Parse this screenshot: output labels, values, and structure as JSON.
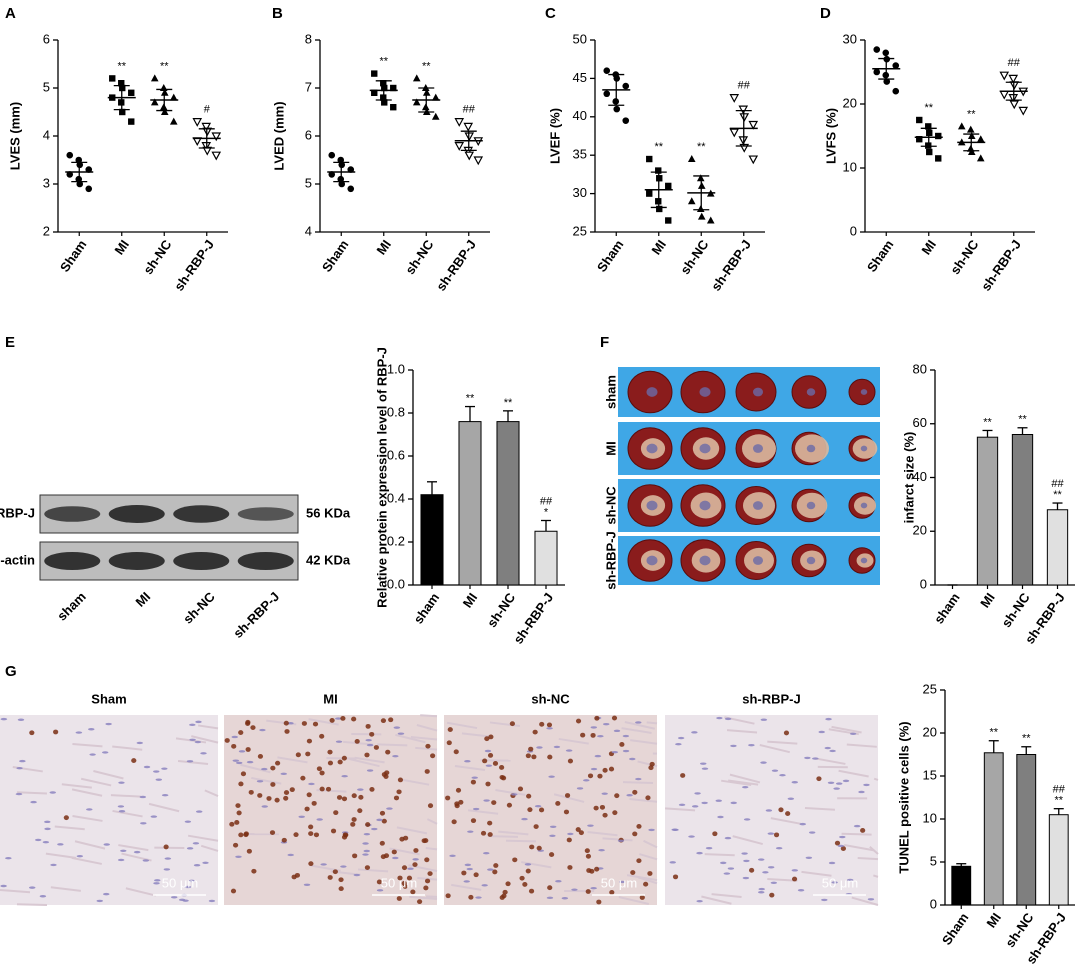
{
  "chart_data": [
    {
      "type": "dot",
      "panel": "A",
      "ylabel": "LVES (mm)",
      "categories": [
        "Sham",
        "MI",
        "sh-NC",
        "sh-RBP-J"
      ],
      "markers": [
        "circle",
        "square",
        "triangle",
        "triangle-down"
      ],
      "points": [
        [
          3.6,
          3.5,
          3.4,
          3.3,
          3.2,
          3.1,
          3.0,
          2.9
        ],
        [
          5.2,
          5.1,
          5.0,
          4.9,
          4.8,
          4.7,
          4.5,
          4.3
        ],
        [
          5.2,
          5.0,
          4.9,
          4.8,
          4.7,
          4.6,
          4.5,
          4.3
        ],
        [
          4.3,
          4.2,
          4.1,
          4.0,
          3.9,
          3.8,
          3.7,
          3.6
        ]
      ],
      "means": [
        3.25,
        4.8,
        4.75,
        3.95
      ],
      "sd": [
        0.2,
        0.25,
        0.22,
        0.2
      ],
      "annotations": [
        null,
        [
          "**"
        ],
        [
          "**"
        ],
        [
          "#"
        ]
      ],
      "ylim": [
        2,
        6
      ],
      "yticks": [
        2,
        3,
        4,
        5,
        6
      ]
    },
    {
      "type": "dot",
      "panel": "B",
      "ylabel": "LVED (mm)",
      "categories": [
        "Sham",
        "MI",
        "sh-NC",
        "sh-RBP-J"
      ],
      "markers": [
        "circle",
        "square",
        "triangle",
        "triangle-down"
      ],
      "points": [
        [
          5.6,
          5.5,
          5.4,
          5.3,
          5.2,
          5.1,
          5.0,
          4.9
        ],
        [
          7.3,
          7.1,
          7.0,
          7.0,
          6.9,
          6.8,
          6.7,
          6.6
        ],
        [
          7.2,
          7.0,
          6.9,
          6.8,
          6.7,
          6.6,
          6.5,
          6.4
        ],
        [
          6.3,
          6.2,
          6.0,
          5.9,
          5.8,
          5.7,
          5.6,
          5.5
        ]
      ],
      "means": [
        5.25,
        6.95,
        6.75,
        5.9
      ],
      "sd": [
        0.2,
        0.2,
        0.25,
        0.2
      ],
      "annotations": [
        null,
        [
          "**"
        ],
        [
          "**"
        ],
        [
          "##"
        ]
      ],
      "ylim": [
        4,
        8
      ],
      "yticks": [
        4,
        5,
        6,
        7,
        8
      ]
    },
    {
      "type": "dot",
      "panel": "C",
      "ylabel": "LVEF (%)",
      "categories": [
        "Sham",
        "MI",
        "sh-NC",
        "sh-RBP-J"
      ],
      "markers": [
        "circle",
        "square",
        "triangle",
        "triangle-down"
      ],
      "points": [
        [
          46,
          45.5,
          45,
          44,
          43,
          42,
          41,
          39.5
        ],
        [
          34.5,
          33,
          32,
          31,
          30,
          29,
          28,
          26.5
        ],
        [
          34.5,
          32,
          31,
          30,
          29,
          28,
          27,
          26.5
        ],
        [
          42.5,
          41,
          40,
          39,
          38,
          37,
          36,
          34.5
        ]
      ],
      "means": [
        43.5,
        30.5,
        30.1,
        38.5
      ],
      "sd": [
        2,
        2.3,
        2.2,
        2.3
      ],
      "annotations": [
        null,
        [
          "**"
        ],
        [
          "**"
        ],
        [
          "##"
        ]
      ],
      "ylim": [
        25,
        50
      ],
      "yticks": [
        25,
        30,
        35,
        40,
        45,
        50
      ]
    },
    {
      "type": "dot",
      "panel": "D",
      "ylabel": "LVFS (%)",
      "categories": [
        "Sham",
        "MI",
        "sh-NC",
        "sh-RBP-J"
      ],
      "markers": [
        "circle",
        "square",
        "triangle",
        "triangle-down"
      ],
      "points": [
        [
          28.5,
          28,
          27,
          26,
          25,
          24.5,
          23.5,
          22
        ],
        [
          17.5,
          16.5,
          15.5,
          15,
          14.5,
          13.5,
          12.5,
          11.5
        ],
        [
          16.5,
          16,
          15,
          14.5,
          14,
          13,
          12.5,
          11.5
        ],
        [
          24.5,
          24,
          23,
          22,
          21.5,
          21,
          20,
          19
        ]
      ],
      "means": [
        25.5,
        14.8,
        14.0,
        22
      ],
      "sd": [
        1.6,
        1.4,
        1.3,
        1.4
      ],
      "annotations": [
        null,
        [
          "**"
        ],
        [
          "**"
        ],
        [
          "##"
        ]
      ],
      "ylim": [
        0,
        30
      ],
      "yticks": [
        0,
        10,
        20,
        30
      ]
    },
    {
      "type": "bar",
      "panel": "E",
      "ylabel": "Relative protein expression level of RBP-J",
      "categories": [
        "sham",
        "MI",
        "sh-NC",
        "sh-RBP-J"
      ],
      "values": [
        0.42,
        0.76,
        0.76,
        0.25
      ],
      "errors": [
        0.06,
        0.07,
        0.05,
        0.05
      ],
      "colors": [
        "#000000",
        "#a6a6a6",
        "#7f7f7f",
        "#e0e0e0"
      ],
      "annotations": [
        null,
        [
          "**"
        ],
        [
          "**"
        ],
        [
          "##",
          "*"
        ]
      ],
      "ylim": [
        0,
        1.0
      ],
      "yticks": [
        {
          "value": 0,
          "label": "0.0"
        },
        0.2,
        0.4,
        0.6,
        0.8,
        {
          "value": 1.0,
          "label": "1.0"
        }
      ]
    },
    {
      "type": "bar",
      "panel": "F",
      "ylabel": "infarct size (%)",
      "categories": [
        "sham",
        "MI",
        "sh-NC",
        "sh-RBP-J"
      ],
      "values": [
        0,
        55,
        56,
        28
      ],
      "errors": [
        0,
        2.5,
        2.5,
        2.5
      ],
      "colors": [
        "#000000",
        "#a6a6a6",
        "#7f7f7f",
        "#e0e0e0"
      ],
      "annotations": [
        null,
        [
          "**"
        ],
        [
          "**"
        ],
        [
          "##",
          "**"
        ]
      ],
      "ylim": [
        0,
        80
      ],
      "yticks": [
        0,
        20,
        40,
        60,
        80
      ]
    },
    {
      "type": "bar",
      "panel": "G",
      "ylabel": "TUNEL positive cells (%)",
      "categories": [
        "Sham",
        "MI",
        "sh-NC",
        "sh-RBP-J"
      ],
      "values": [
        4.5,
        17.7,
        17.5,
        10.5
      ],
      "errors": [
        0.3,
        1.4,
        0.9,
        0.7
      ],
      "colors": [
        "#000000",
        "#a6a6a6",
        "#7f7f7f",
        "#e0e0e0"
      ],
      "annotations": [
        null,
        [
          "**"
        ],
        [
          "**"
        ],
        [
          "##",
          "**"
        ]
      ],
      "ylim": [
        0,
        25
      ],
      "yticks": [
        0,
        5,
        10,
        15,
        20,
        25
      ]
    }
  ],
  "blot": {
    "proteins": [
      "RBP-J",
      "β-actin"
    ],
    "sizes": [
      "56 KDa",
      "42 KDa"
    ],
    "lanes": [
      "sham",
      "MI",
      "sh-NC",
      "sh-RBP-J"
    ]
  },
  "ttc": {
    "rows": [
      "sham",
      "MI",
      "sh-NC",
      "sh-RBP-J"
    ]
  },
  "histology": {
    "titles": [
      "Sham",
      "MI",
      "sh-NC",
      "sh-RBP-J"
    ],
    "scale_bars": [
      "50 μm",
      "50 μm",
      "50 μm",
      "50 μm"
    ]
  }
}
